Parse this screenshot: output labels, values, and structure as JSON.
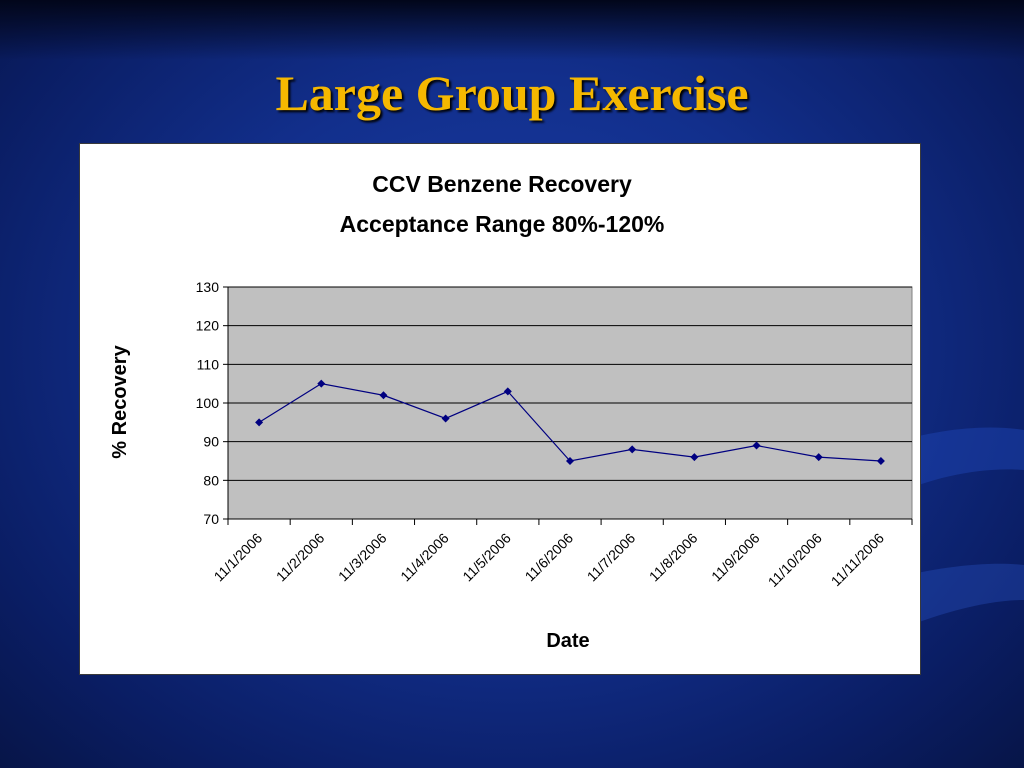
{
  "slide": {
    "title": "Large Group Exercise"
  },
  "colors": {
    "title": "#f5b800",
    "plot_area": "#c0c0c0",
    "series_line": "#000080"
  },
  "chart_data": {
    "type": "line",
    "title": "CCV Benzene Recovery",
    "subtitle": "Acceptance Range 80%-120%",
    "xlabel": "Date",
    "ylabel": "% Recovery",
    "categories": [
      "11/1/2006",
      "11/2/2006",
      "11/3/2006",
      "11/4/2006",
      "11/5/2006",
      "11/6/2006",
      "11/7/2006",
      "11/8/2006",
      "11/9/2006",
      "11/10/2006",
      "11/11/2006"
    ],
    "series": [
      {
        "values": [
          95,
          105,
          102,
          96,
          103,
          85,
          88,
          86,
          89,
          86,
          85
        ]
      }
    ],
    "ylim": [
      70,
      130
    ],
    "yticks": [
      70,
      80,
      90,
      100,
      110,
      120,
      130
    ],
    "grid": true,
    "legend": "none",
    "marker": "diamond"
  }
}
